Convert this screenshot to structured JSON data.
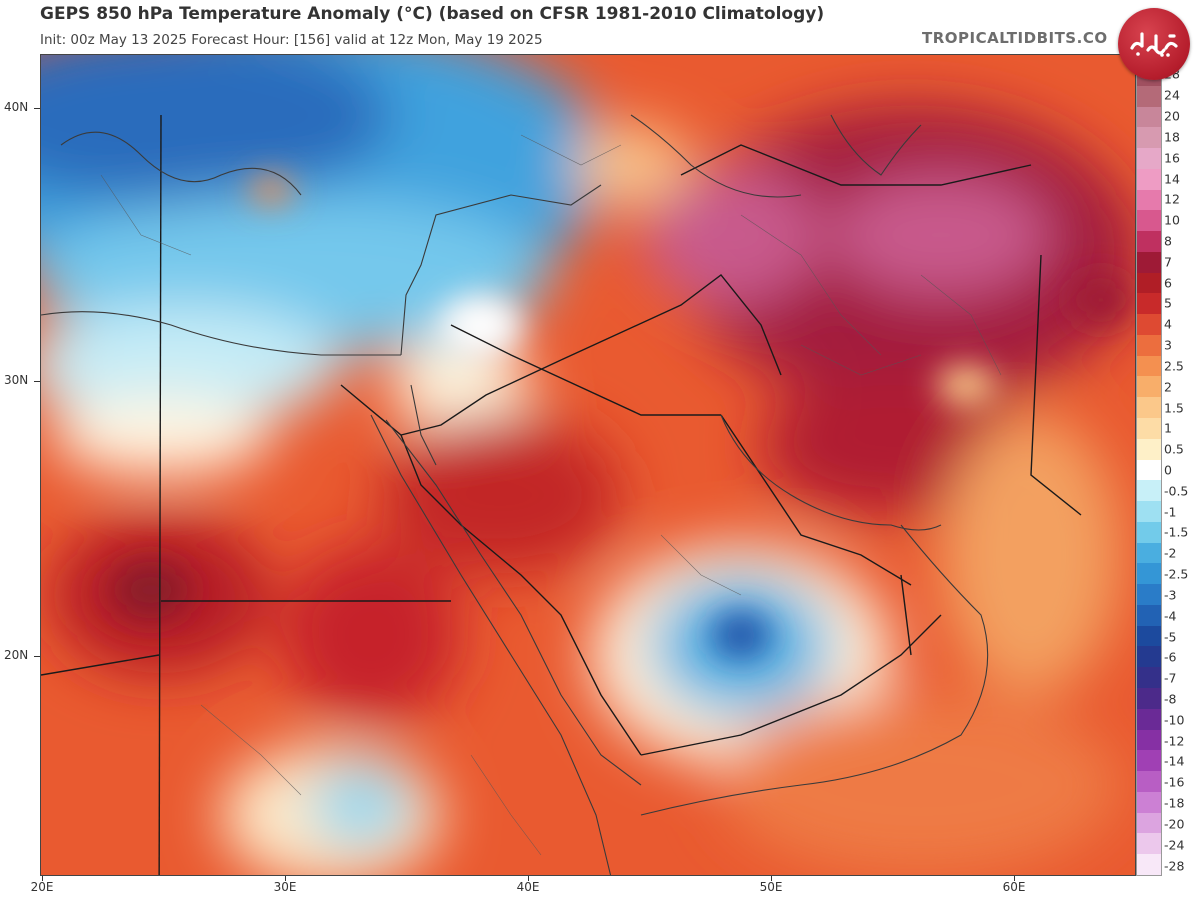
{
  "header": {
    "title": "GEPS 850 hPa Temperature Anomaly (°C) (based on CFSR 1981-2010 Climatology)",
    "subtitle": "Init: 00z May 13 2025    Forecast Hour: [156]    valid at 12z Mon, May 19 2025",
    "source": "TROPICALTIDBITS.CO"
  },
  "logo": {
    "text": "فرادید",
    "color": "#b51d2c"
  },
  "map": {
    "lat_labels": [
      "40N",
      "30N",
      "20N"
    ],
    "lon_labels": [
      "20E",
      "30E",
      "40E",
      "50E",
      "60E"
    ]
  },
  "legend": {
    "labels": [
      "28",
      "24",
      "20",
      "18",
      "16",
      "14",
      "12",
      "10",
      "8",
      "7",
      "6",
      "5",
      "4",
      "3",
      "2.5",
      "2",
      "1.5",
      "1",
      "0.5",
      "0",
      "-0.5",
      "-1",
      "-1.5",
      "-2",
      "-2.5",
      "-3",
      "-4",
      "-5",
      "-6",
      "-7",
      "-8",
      "-10",
      "-12",
      "-14",
      "-16",
      "-18",
      "-20",
      "-24",
      "-28"
    ],
    "colors": [
      "#a05060",
      "#b46a78",
      "#c8869a",
      "#d79ab0",
      "#e6a8c8",
      "#ee9cc4",
      "#e67aac",
      "#d8588e",
      "#bf3060",
      "#9e1a36",
      "#b01e26",
      "#c82a2a",
      "#de4a32",
      "#ec6e3e",
      "#f49050",
      "#f8ae6a",
      "#fbc88a",
      "#fddca6",
      "#fef0c8",
      "#ffffff",
      "#c8f0f8",
      "#9ee0f2",
      "#72cbea",
      "#4aaee0",
      "#3496d6",
      "#2a7cc8",
      "#2262b4",
      "#1c4a9e",
      "#243a90",
      "#34308a",
      "#4c2a8a",
      "#6a2a96",
      "#8630a4",
      "#a040b4",
      "#b85ec4",
      "#cc80d4",
      "#dca4e0",
      "#ecc8ec",
      "#f8e8f8"
    ]
  }
}
